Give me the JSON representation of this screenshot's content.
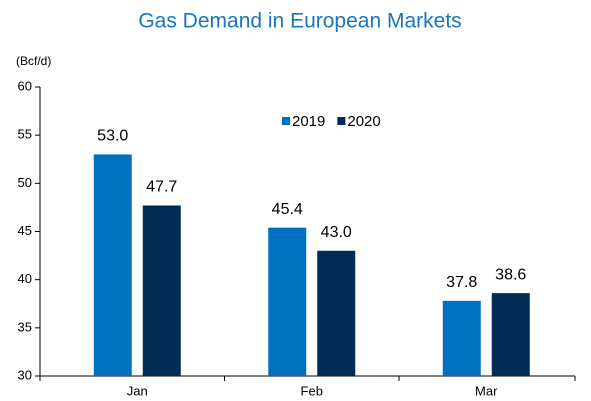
{
  "chart_data": {
    "type": "bar",
    "title": "Gas Demand in European Markets",
    "y_label": "(Bcf/d)",
    "categories": [
      "Jan",
      "Feb",
      "Mar"
    ],
    "series": [
      {
        "name": "2019",
        "color": "#0070c0",
        "values": [
          53,
          45.4,
          37.8
        ],
        "value_labels": [
          "53.0",
          "45.4",
          "37.8"
        ]
      },
      {
        "name": "2020",
        "color": "#002b54",
        "values": [
          47.7,
          43,
          38.6
        ],
        "value_labels": [
          "47.7",
          "43.0",
          "38.6"
        ]
      }
    ],
    "ylim": [
      30,
      60
    ],
    "yticks": [
      30,
      35,
      40,
      45,
      50,
      55,
      60
    ],
    "grid": false
  }
}
